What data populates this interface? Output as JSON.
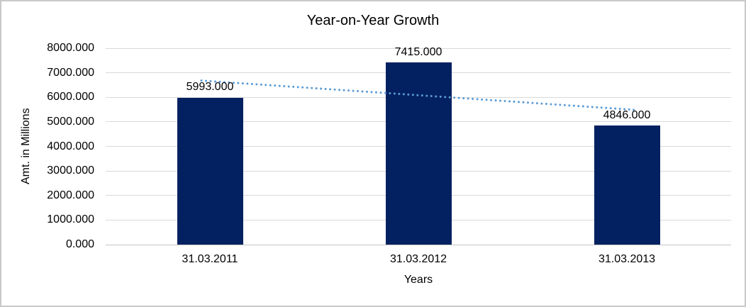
{
  "frame": {
    "background": "#FFFFFF",
    "border_color": "#C9C9C9"
  },
  "chart_data": {
    "type": "bar",
    "title": "Year-on-Year Growth",
    "categories": [
      "31.03.2011",
      "31.03.2012",
      "31.03.2013"
    ],
    "values": [
      5993,
      7415,
      4846
    ],
    "data_labels": [
      "5993.000",
      "7415.000",
      "4846.000"
    ],
    "xlabel": "Years",
    "ylabel": "Amt. in Millions",
    "ylim": [
      0,
      8000
    ],
    "ytick_step": 1000,
    "ytick_labels": [
      "0.000",
      "1000.000",
      "2000.000",
      "3000.000",
      "4000.000",
      "5000.000",
      "6000.000",
      "7000.000",
      "8000.000"
    ],
    "grid": "horizontal-only",
    "legend": "none",
    "bar_color": "#032160",
    "gridline_color": "#D9D9D9",
    "axis_line_color": "#C6C6C6",
    "text_color": "#000000",
    "trendline": {
      "type": "linear",
      "style": "dotted",
      "color": "#5B9BD5"
    }
  }
}
